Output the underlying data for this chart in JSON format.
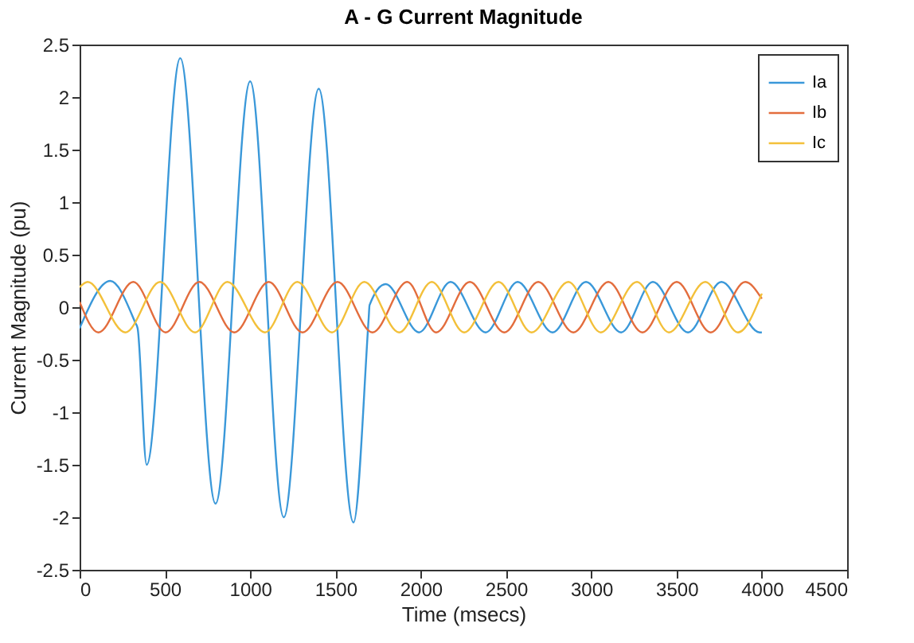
{
  "chart_data": {
    "type": "line",
    "title": "A - G Current Magnitude",
    "xlabel": "Time (msecs)",
    "ylabel": "Current Magnitude (pu)",
    "xlim": [
      0,
      4500
    ],
    "xticks": [
      0,
      500,
      1000,
      1500,
      2000,
      2500,
      3000,
      3500,
      4000,
      4500
    ],
    "ylim": [
      -2.5,
      2.5
    ],
    "yticks": [
      -2.5,
      -2,
      -1.5,
      -1,
      -0.5,
      0,
      0.5,
      1,
      1.5,
      2,
      2.5
    ],
    "grid": false,
    "legend": "top right",
    "marker": "none",
    "line_style": "solid",
    "series": [
      {
        "name": "Ia",
        "color": "#3a98d9",
        "x": [
          0,
          180,
          327,
          340,
          393,
          590,
          797,
          1000,
          1197,
          1402,
          1606,
          1695,
          1700,
          1795,
          1990,
          2175,
          2381,
          2568,
          2773,
          2969,
          3175,
          3361,
          3567,
          3763,
          3987,
          4000
        ],
        "values": [
          -0.2,
          0.25,
          -0.15,
          -0.2,
          -1.5,
          2.37,
          -1.87,
          2.15,
          -2.0,
          2.08,
          -2.05,
          -0.1,
          0.02,
          0.22,
          -0.24,
          0.24,
          -0.24,
          0.24,
          -0.24,
          0.24,
          -0.24,
          0.24,
          -0.24,
          0.24,
          -0.24,
          -0.24
        ]
      },
      {
        "name": "Ib",
        "color": "#e36d3d",
        "x": [
          0,
          110,
          315,
          504,
          702,
          907,
          1109,
          1307,
          1512,
          1717,
          1921,
          2090,
          2288,
          2490,
          2689,
          2895,
          3100,
          3300,
          3501,
          3700,
          3903,
          4000
        ],
        "values": [
          0.05,
          -0.24,
          0.24,
          -0.24,
          0.24,
          -0.24,
          0.24,
          -0.24,
          0.24,
          -0.24,
          0.24,
          -0.24,
          0.24,
          -0.24,
          0.24,
          -0.24,
          0.24,
          -0.24,
          0.24,
          -0.24,
          0.24,
          0.08
        ]
      },
      {
        "name": "Ic",
        "color": "#f3c03a",
        "x": [
          0,
          47,
          268,
          472,
          677,
          866,
          1087,
          1276,
          1480,
          1669,
          1874,
          2065,
          2255,
          2456,
          2650,
          2866,
          3055,
          3268,
          3455,
          3669,
          3860,
          4000
        ],
        "values": [
          0.19,
          0.24,
          -0.24,
          0.24,
          -0.24,
          0.24,
          -0.24,
          0.24,
          -0.24,
          0.24,
          -0.24,
          0.24,
          -0.24,
          0.24,
          -0.24,
          0.24,
          -0.24,
          0.24,
          -0.24,
          0.24,
          -0.24,
          0.13
        ]
      }
    ]
  }
}
